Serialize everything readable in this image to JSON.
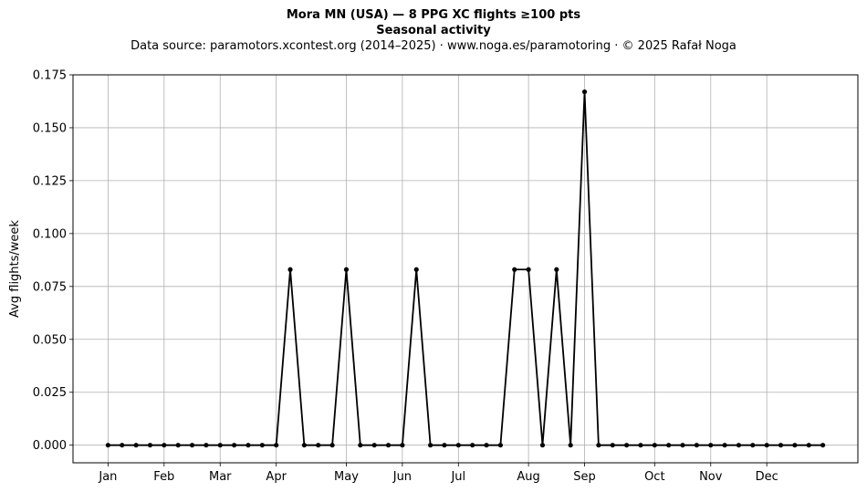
{
  "chart_data": {
    "type": "line",
    "title": "Mora MN (USA)  —  8 PPG XC flights ≥100 pts",
    "subtitle": "Seasonal activity",
    "source": "Data source: paramotors.xcontest.org (2014–2025)  ·  www.noga.es/paramotoring  ·  © 2025 Rafał Noga",
    "xlabel": "",
    "ylabel": "Avg flights/week",
    "xlim": [
      -2.5,
      53.5
    ],
    "ylim": [
      -0.00833,
      0.175
    ],
    "grid": true,
    "x_ticks": [
      {
        "label": "Jan",
        "pos": 0
      },
      {
        "label": "Feb",
        "pos": 4
      },
      {
        "label": "Mar",
        "pos": 8
      },
      {
        "label": "Apr",
        "pos": 12
      },
      {
        "label": "May",
        "pos": 17
      },
      {
        "label": "Jun",
        "pos": 21
      },
      {
        "label": "Jul",
        "pos": 25
      },
      {
        "label": "Aug",
        "pos": 30
      },
      {
        "label": "Sep",
        "pos": 34
      },
      {
        "label": "Oct",
        "pos": 39
      },
      {
        "label": "Nov",
        "pos": 43
      },
      {
        "label": "Dec",
        "pos": 47
      }
    ],
    "y_ticks": [
      {
        "label": "0.000",
        "value": 0
      },
      {
        "label": "0.025",
        "value": 0.025
      },
      {
        "label": "0.050",
        "value": 0.05
      },
      {
        "label": "0.075",
        "value": 0.075
      },
      {
        "label": "0.100",
        "value": 0.1
      },
      {
        "label": "0.125",
        "value": 0.125
      },
      {
        "label": "0.150",
        "value": 0.15
      },
      {
        "label": "0.175",
        "value": 0.175
      }
    ],
    "series": [
      {
        "color": "#000000",
        "x": [
          0,
          1,
          2,
          3,
          4,
          5,
          6,
          7,
          8,
          9,
          10,
          11,
          12,
          13,
          14,
          15,
          16,
          17,
          18,
          19,
          20,
          21,
          22,
          23,
          24,
          25,
          26,
          27,
          28,
          29,
          30,
          31,
          32,
          33,
          34,
          35,
          36,
          37,
          38,
          39,
          40,
          41,
          42,
          43,
          44,
          45,
          46,
          47,
          48,
          49,
          50,
          51
        ],
        "values": [
          0,
          0,
          0,
          0,
          0,
          0,
          0,
          0,
          0,
          0,
          0,
          0,
          0,
          0.083,
          0,
          0,
          0,
          0.083,
          0,
          0,
          0,
          0,
          0.083,
          0,
          0,
          0,
          0,
          0,
          0,
          0.083,
          0.083,
          0,
          0.083,
          0,
          0.167,
          0,
          0,
          0,
          0,
          0,
          0,
          0,
          0,
          0,
          0,
          0,
          0,
          0,
          0,
          0,
          0,
          0
        ]
      }
    ]
  }
}
